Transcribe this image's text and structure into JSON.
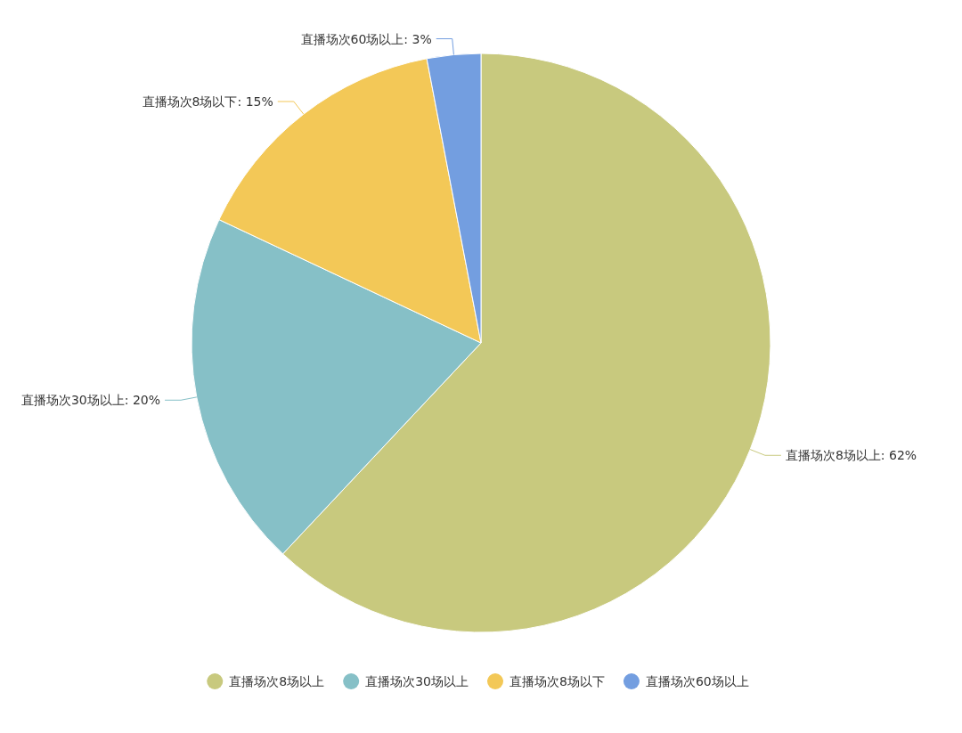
{
  "chart_data": {
    "type": "pie",
    "categories": [
      "直播场次8场以上",
      "直播场次30场以上",
      "直播场次8场以下",
      "直播场次60场以上"
    ],
    "values": [
      62,
      20,
      15,
      3
    ],
    "colors": [
      "#c8c97e",
      "#86c0c7",
      "#f3c857",
      "#739ee0"
    ],
    "value_labels": [
      "直播场次8场以上: 62%",
      "直播场次30场以上: 20%",
      "直播场次8场以下: 15%",
      "直播场次60场以上: 3%"
    ],
    "legend": "bottom"
  }
}
